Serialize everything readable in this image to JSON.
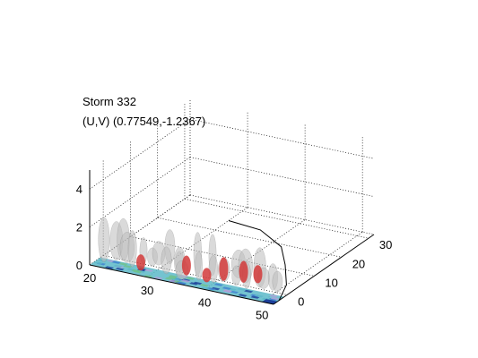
{
  "chart_data": {
    "type": "surface3d",
    "title": "Storm 332",
    "subtitle": "(U,V) (0.77549,-1.2367)",
    "xlabel": "",
    "ylabel": "",
    "zlabel": "",
    "x_ticks": [
      "20",
      "30",
      "40",
      "50"
    ],
    "y_ticks": [
      "0",
      "10",
      "20",
      "30"
    ],
    "z_ticks": [
      "0",
      "2",
      "4"
    ],
    "xlim": [
      20,
      52
    ],
    "ylim": [
      -5,
      32
    ],
    "zlim": [
      0,
      5
    ],
    "grid": true,
    "legend": "none",
    "storm_track": [
      {
        "x": 52,
        "y": -3
      },
      {
        "x": 50,
        "y": 4
      },
      {
        "x": 46,
        "y": 12
      },
      {
        "x": 42,
        "y": 19
      },
      {
        "x": 36,
        "y": 24
      },
      {
        "x": 30,
        "y": 25
      }
    ],
    "isosurfaces": [
      {
        "color": "#bdbdbd",
        "label": "gray isosurface"
      },
      {
        "color": "#d23a3a",
        "label": "red isosurface"
      }
    ],
    "base_colors": [
      "#1c3f9a",
      "#3f7fd0",
      "#5cb8c8",
      "#6fc28a",
      "#b0a0d8"
    ]
  }
}
